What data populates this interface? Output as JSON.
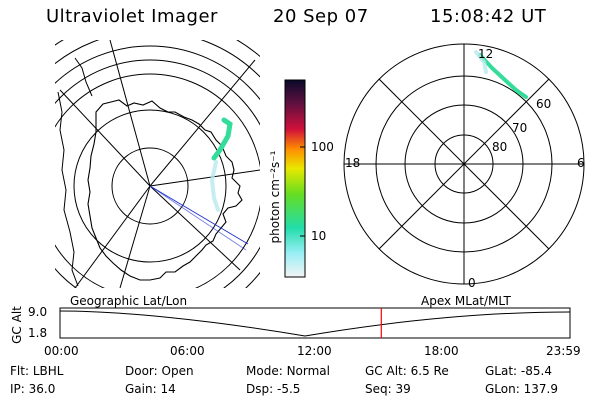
{
  "header": {
    "instrument": "Ultraviolet Imager",
    "date": "20 Sep 07",
    "time": "15:08:42 UT"
  },
  "left_panel": {
    "caption": "Geographic Lat/Lon"
  },
  "right_panel": {
    "caption": "Apex MLat/MLT",
    "mlt_labels": {
      "top": "12",
      "left": "18",
      "right": "6",
      "bottom": "0"
    },
    "lat_labels": [
      "60",
      "70",
      "80"
    ]
  },
  "colorbar": {
    "unit_label": "photon cm⁻²s⁻¹",
    "ticks": [
      "100",
      "10"
    ]
  },
  "timeline": {
    "axis_title": "GC Alt",
    "y_top": "9.0",
    "y_bottom": "1.8",
    "x_ticks": [
      "00:00",
      "06:00",
      "12:00",
      "18:00",
      "23:59"
    ],
    "current_time_fraction": 0.63
  },
  "info": {
    "row1": [
      {
        "label": "Flt:",
        "value": "LBHL"
      },
      {
        "label": "Door:",
        "value": "Open"
      },
      {
        "label": "Mode:",
        "value": "Normal"
      },
      {
        "label": "GC Alt:",
        "value": "6.5 Re"
      },
      {
        "label": "GLat:",
        "value": "-85.4"
      }
    ],
    "row2": [
      {
        "label": "IP:",
        "value": "36.0"
      },
      {
        "label": "Gain:",
        "value": "14"
      },
      {
        "label": "Dsp:",
        "value": "-5.5"
      },
      {
        "label": "Seq:",
        "value": "39"
      },
      {
        "label": "GLon:",
        "value": "137.9"
      }
    ]
  },
  "colors": {
    "current_time_marker": "#ff0000",
    "aurora": "#3ad7a0",
    "line": "#000000",
    "track": "#2233cc"
  }
}
